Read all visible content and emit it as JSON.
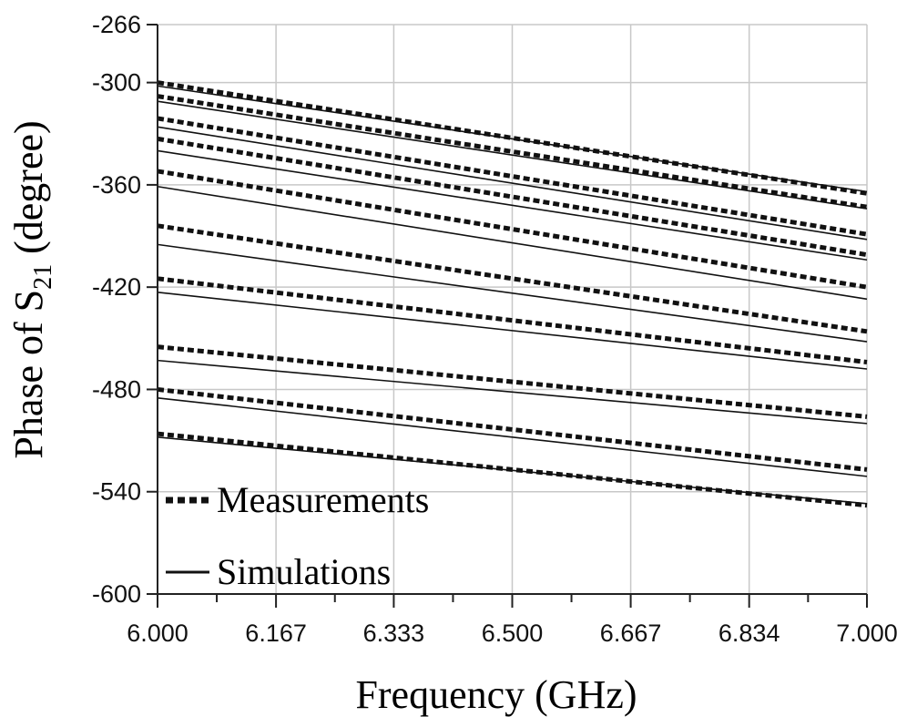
{
  "chart_data": {
    "type": "line",
    "title": "",
    "xlabel": "Frequency (GHz)",
    "ylabel": {
      "prefix": "Phase of S",
      "subscript": "21",
      "suffix": " (degree)"
    },
    "xlim": [
      6.0,
      7.0
    ],
    "ylim": [
      -600,
      -266
    ],
    "x_ticks": [
      6.0,
      6.167,
      6.333,
      6.5,
      6.667,
      6.834,
      7.0
    ],
    "x_tick_labels": [
      "6.000",
      "6.167",
      "6.333",
      "6.500",
      "6.667",
      "6.834",
      "7.000"
    ],
    "y_ticks": [
      -266,
      -300,
      -360,
      -420,
      -480,
      -540,
      -600
    ],
    "y_tick_labels": [
      "-266",
      "-300",
      "-360",
      "-420",
      "-480",
      "-540",
      "-600"
    ],
    "grid": true,
    "legend": {
      "placement": "bottom-left",
      "entries": [
        {
          "label": "Measurements",
          "style": "dashed"
        },
        {
          "label": "Simulations",
          "style": "solid"
        }
      ]
    },
    "x": [
      6.0,
      7.0
    ],
    "series": [
      {
        "style": "dashed",
        "values": [
          -300,
          -365
        ]
      },
      {
        "style": "solid",
        "values": [
          -302,
          -364
        ]
      },
      {
        "style": "dashed",
        "values": [
          -308,
          -373
        ]
      },
      {
        "style": "solid",
        "values": [
          -311,
          -374
        ]
      },
      {
        "style": "dashed",
        "values": [
          -321,
          -389
        ]
      },
      {
        "style": "solid",
        "values": [
          -326,
          -392
        ]
      },
      {
        "style": "dashed",
        "values": [
          -333,
          -401
        ]
      },
      {
        "style": "solid",
        "values": [
          -340,
          -404
        ]
      },
      {
        "style": "dashed",
        "values": [
          -352,
          -420
        ]
      },
      {
        "style": "solid",
        "values": [
          -361,
          -427
        ]
      },
      {
        "style": "dashed",
        "values": [
          -384,
          -446
        ]
      },
      {
        "style": "solid",
        "values": [
          -395,
          -452
        ]
      },
      {
        "style": "dashed",
        "values": [
          -415,
          -464
        ]
      },
      {
        "style": "solid",
        "values": [
          -423,
          -468
        ]
      },
      {
        "style": "dashed",
        "values": [
          -455,
          -496
        ]
      },
      {
        "style": "solid",
        "values": [
          -463,
          -500
        ]
      },
      {
        "style": "dashed",
        "values": [
          -480,
          -527
        ]
      },
      {
        "style": "solid",
        "values": [
          -485,
          -531
        ]
      },
      {
        "style": "dashed",
        "values": [
          -506,
          -548
        ]
      },
      {
        "style": "solid",
        "values": [
          -508,
          -547
        ]
      }
    ],
    "colors": {
      "line": "#111111",
      "grid": "#c8c8c8",
      "axis": "#222222"
    }
  }
}
